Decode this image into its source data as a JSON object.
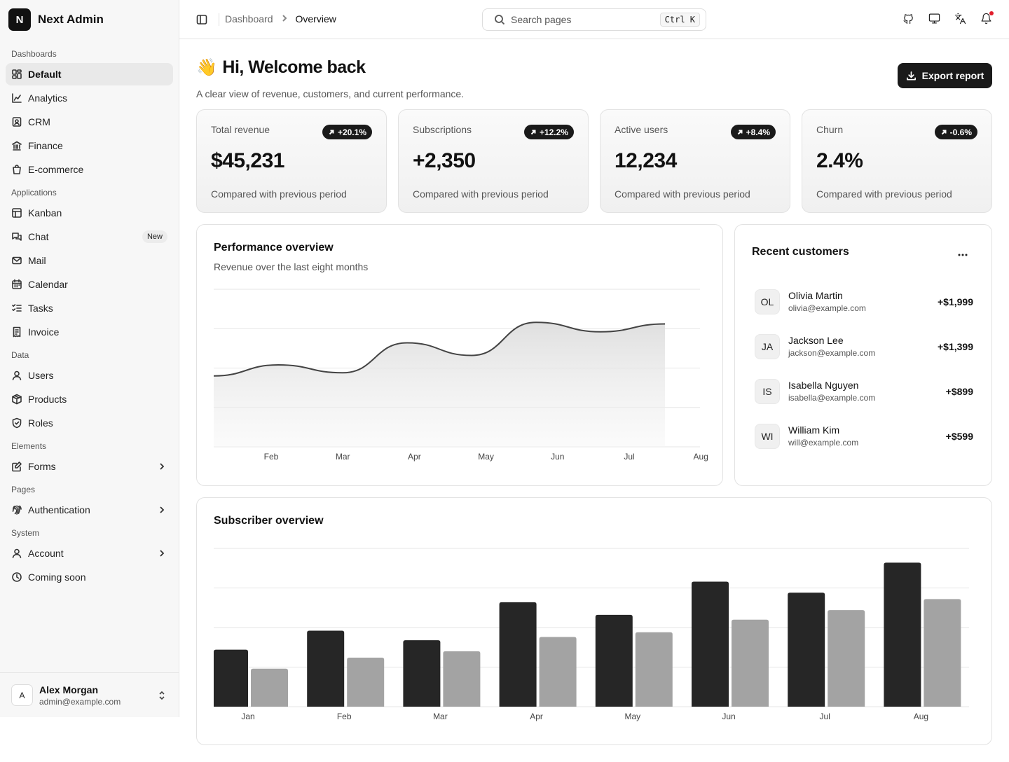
{
  "brand": {
    "logo_letter": "N",
    "name": "Next Admin"
  },
  "nav": {
    "groups": [
      {
        "label": "Dashboards",
        "items": [
          {
            "label": "Default",
            "icon": "layout-dashboard-icon",
            "active": true
          },
          {
            "label": "Analytics",
            "icon": "chart-line-icon"
          },
          {
            "label": "CRM",
            "icon": "contact-icon"
          },
          {
            "label": "Finance",
            "icon": "bank-icon"
          },
          {
            "label": "E-commerce",
            "icon": "shopping-bag-icon"
          }
        ]
      },
      {
        "label": "Applications",
        "items": [
          {
            "label": "Kanban",
            "icon": "kanban-icon"
          },
          {
            "label": "Chat",
            "icon": "chat-icon",
            "badge": "New"
          },
          {
            "label": "Mail",
            "icon": "mail-icon"
          },
          {
            "label": "Calendar",
            "icon": "calendar-icon"
          },
          {
            "label": "Tasks",
            "icon": "list-checks-icon"
          },
          {
            "label": "Invoice",
            "icon": "receipt-icon"
          }
        ]
      },
      {
        "label": "Data",
        "items": [
          {
            "label": "Users",
            "icon": "user-icon"
          },
          {
            "label": "Products",
            "icon": "package-icon"
          },
          {
            "label": "Roles",
            "icon": "shield-icon"
          }
        ]
      },
      {
        "label": "Elements",
        "items": [
          {
            "label": "Forms",
            "icon": "form-edit-icon",
            "chevron": true
          }
        ]
      },
      {
        "label": "Pages",
        "items": [
          {
            "label": "Authentication",
            "icon": "fingerprint-icon",
            "chevron": true
          }
        ]
      },
      {
        "label": "System",
        "items": [
          {
            "label": "Account",
            "icon": "user-icon",
            "chevron": true
          },
          {
            "label": "Coming soon",
            "icon": "clock-icon"
          }
        ]
      }
    ]
  },
  "user": {
    "initial": "A",
    "name": "Alex Morgan",
    "email": "admin@example.com"
  },
  "header": {
    "breadcrumb_parent": "Dashboard",
    "breadcrumb_current": "Overview",
    "search_placeholder": "Search pages",
    "search_shortcut": "Ctrl K",
    "icons": [
      "github-icon",
      "monitor-icon",
      "translate-icon",
      "bell-icon"
    ]
  },
  "welcome": {
    "emoji": "👋",
    "title": "Hi, Welcome back",
    "subtitle": "A clear view of revenue, customers, and current performance.",
    "export_label": "Export report"
  },
  "stats": [
    {
      "label": "Total revenue",
      "badge": "+20.1%",
      "value": "$45,231",
      "note": "Compared with previous period"
    },
    {
      "label": "Subscriptions",
      "badge": "+12.2%",
      "value": "+2,350",
      "note": "Compared with previous period"
    },
    {
      "label": "Active users",
      "badge": "+8.4%",
      "value": "12,234",
      "note": "Compared with previous period"
    },
    {
      "label": "Churn",
      "badge": "-0.6%",
      "value": "2.4%",
      "note": "Compared with previous period"
    }
  ],
  "performance": {
    "title": "Performance overview",
    "subtitle": "Revenue over the last eight months"
  },
  "customers": {
    "title": "Recent customers",
    "rows": [
      {
        "initials": "OL",
        "name": "Olivia Martin",
        "email": "olivia@example.com",
        "amount": "+$1,999"
      },
      {
        "initials": "JA",
        "name": "Jackson Lee",
        "email": "jackson@example.com",
        "amount": "+$1,399"
      },
      {
        "initials": "IS",
        "name": "Isabella Nguyen",
        "email": "isabella@example.com",
        "amount": "+$899"
      },
      {
        "initials": "WI",
        "name": "William Kim",
        "email": "will@example.com",
        "amount": "+$599"
      }
    ]
  },
  "subscribers": {
    "title": "Subscriber overview"
  },
  "chart_data": [
    {
      "type": "area",
      "categories": [
        "Jan",
        "Feb",
        "Mar",
        "Apr",
        "May",
        "Jun",
        "Jul",
        "Aug"
      ],
      "tick_labels": [
        "Feb",
        "Mar",
        "Apr",
        "May",
        "Jun",
        "Jul",
        "Aug"
      ],
      "values": [
        45,
        52,
        47,
        66,
        58,
        79,
        73,
        78
      ],
      "ylim": [
        0,
        100
      ],
      "grid": true,
      "color": "#444444"
    },
    {
      "type": "bar",
      "categories": [
        "Jan",
        "Feb",
        "Mar",
        "Apr",
        "May",
        "Jun",
        "Jul",
        "Aug"
      ],
      "series": [
        {
          "values": [
            36,
            48,
            42,
            66,
            58,
            79,
            72,
            91
          ],
          "color": "#262626"
        },
        {
          "values": [
            24,
            31,
            35,
            44,
            47,
            55,
            61,
            68
          ],
          "color": "#a3a3a3"
        }
      ],
      "ylim": [
        0,
        100
      ],
      "grid": true
    }
  ]
}
